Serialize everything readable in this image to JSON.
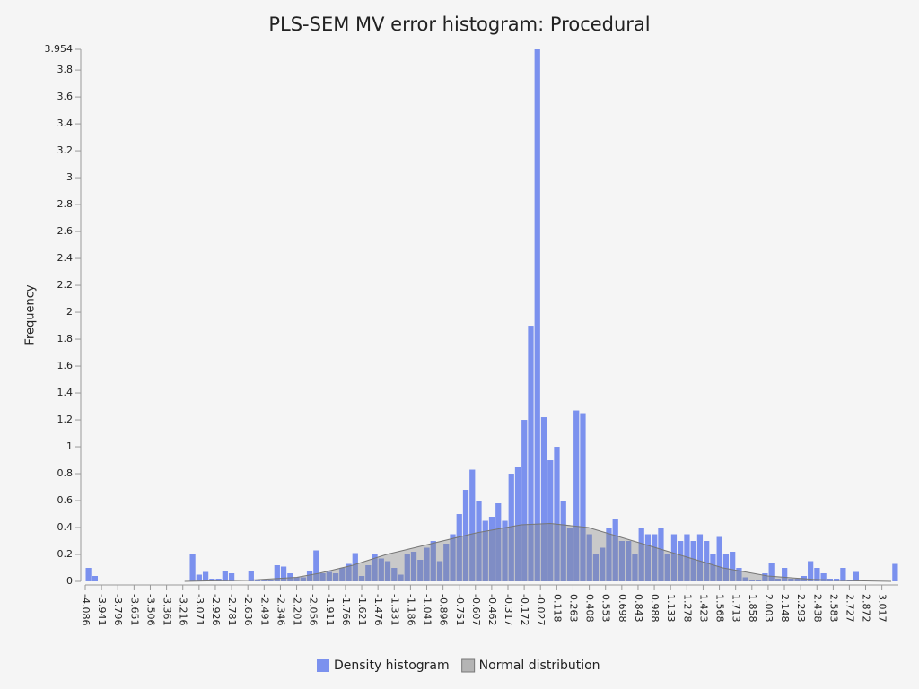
{
  "chart_data": {
    "type": "histogram",
    "title": "PLS-SEM MV error histogram: Procedural",
    "ylabel": "Frequency",
    "bins": [
      -4.086,
      -4.028,
      -3.97,
      -3.912,
      -3.854,
      -3.796,
      -3.738,
      -3.68,
      -3.622,
      -3.564,
      -3.506,
      -3.448,
      -3.39,
      -3.332,
      -3.274,
      -3.216,
      -3.158,
      -3.1,
      -3.042,
      -2.984,
      -2.926,
      -2.868,
      -2.81,
      -2.752,
      -2.694,
      -2.636,
      -2.578,
      -2.52,
      -2.462,
      -2.404,
      -2.346,
      -2.288,
      -2.23,
      -2.172,
      -2.114,
      -2.056,
      -1.998,
      -1.94,
      -1.882,
      -1.824,
      -1.766,
      -1.708,
      -1.65,
      -1.592,
      -1.534,
      -1.476,
      -1.418,
      -1.36,
      -1.302,
      -1.244,
      -1.186,
      -1.128,
      -1.07,
      -1.012,
      -0.954,
      -0.896,
      -0.838,
      -0.78,
      -0.722,
      -0.664,
      -0.606,
      -0.548,
      -0.49,
      -0.432,
      -0.374,
      -0.316,
      -0.258,
      -0.2,
      -0.142,
      -0.084,
      -0.026,
      0.032,
      0.09,
      0.148,
      0.206,
      0.264,
      0.322,
      0.38,
      0.438,
      0.496,
      0.554,
      0.612,
      0.67,
      0.728,
      0.786,
      0.844,
      0.902,
      0.96,
      1.018,
      1.076,
      1.134,
      1.192,
      1.25,
      1.308,
      1.366,
      1.424,
      1.482,
      1.54,
      1.598,
      1.656,
      1.714,
      1.772,
      1.83,
      1.888,
      1.946,
      2.004,
      2.062,
      2.12,
      2.178,
      2.236,
      2.294,
      2.352,
      2.41,
      2.468,
      2.526,
      2.584,
      2.642,
      2.7,
      2.758,
      2.816,
      2.874,
      2.932,
      2.99,
      3.048,
      3.106,
      3.164
    ],
    "series": [
      {
        "name": "Density histogram",
        "color": "#7b91ee",
        "values": [
          0.1,
          0.04,
          0,
          0,
          0,
          0,
          0,
          0,
          0,
          0,
          0,
          0,
          0,
          0,
          0,
          0,
          0.2,
          0.05,
          0.07,
          0.02,
          0.02,
          0.08,
          0.06,
          0,
          0,
          0.08,
          0.01,
          0.01,
          0.01,
          0.12,
          0.11,
          0.06,
          0.03,
          0.03,
          0.08,
          0.23,
          0.06,
          0.07,
          0.06,
          0.1,
          0.13,
          0.21,
          0.04,
          0.12,
          0.2,
          0.17,
          0.15,
          0.1,
          0.05,
          0.2,
          0.22,
          0.16,
          0.25,
          0.3,
          0.15,
          0.28,
          0.35,
          0.5,
          0.68,
          0.83,
          0.6,
          0.45,
          0.48,
          0.58,
          0.45,
          0.8,
          0.85,
          1.2,
          1.9,
          3.954,
          1.22,
          0.9,
          1.0,
          0.6,
          0.4,
          1.27,
          1.25,
          0.35,
          0.2,
          0.25,
          0.4,
          0.46,
          0.3,
          0.3,
          0.2,
          0.4,
          0.35,
          0.35,
          0.4,
          0.2,
          0.35,
          0.3,
          0.35,
          0.3,
          0.35,
          0.3,
          0.2,
          0.33,
          0.2,
          0.22,
          0.1,
          0.03,
          0.01,
          0.01,
          0.06,
          0.14,
          0.02,
          0.1,
          0.02,
          0.02,
          0.04,
          0.15,
          0.1,
          0.06,
          0.02,
          0.02,
          0.1,
          0.01,
          0.07,
          0,
          0,
          0,
          0,
          0,
          0.13
        ]
      },
      {
        "name": "Normal distribution",
        "type": "area",
        "color": "#888888",
        "x": [
          -3.2,
          -2.6,
          -2.2,
          -2.0,
          -1.7,
          -1.4,
          -1.0,
          -0.6,
          -0.2,
          0.06,
          0.4,
          0.8,
          1.2,
          1.6,
          2.0,
          2.4,
          2.8,
          3.1
        ],
        "values": [
          0,
          0.01,
          0.03,
          0.06,
          0.12,
          0.2,
          0.28,
          0.36,
          0.42,
          0.43,
          0.4,
          0.3,
          0.2,
          0.1,
          0.04,
          0.015,
          0.004,
          0
        ]
      }
    ],
    "xlim": [
      -4.086,
      3.164
    ],
    "xticks": [
      -4.086,
      -3.941,
      -3.796,
      -3.651,
      -3.506,
      -3.361,
      -3.216,
      -3.071,
      -2.926,
      -2.781,
      -2.636,
      -2.491,
      -2.346,
      -2.201,
      -2.056,
      -1.911,
      -1.766,
      -1.621,
      -1.476,
      -1.331,
      -1.186,
      -1.041,
      -0.896,
      -0.751,
      -0.607,
      -0.462,
      -0.317,
      -0.172,
      -0.027,
      0.118,
      0.263,
      0.408,
      0.553,
      0.698,
      0.843,
      0.988,
      1.133,
      1.278,
      1.423,
      1.568,
      1.713,
      1.858,
      2.003,
      2.148,
      2.293,
      2.438,
      2.583,
      2.727,
      2.872,
      3.017
    ],
    "ylim": [
      0,
      3.954
    ],
    "yticks": [
      0,
      0.2,
      0.4,
      0.6,
      0.8,
      1,
      1.2,
      1.4,
      1.6,
      1.8,
      2,
      2.2,
      2.4,
      2.6,
      2.8,
      3,
      3.2,
      3.4,
      3.6,
      3.8,
      3.954
    ],
    "legend": "bottom"
  }
}
